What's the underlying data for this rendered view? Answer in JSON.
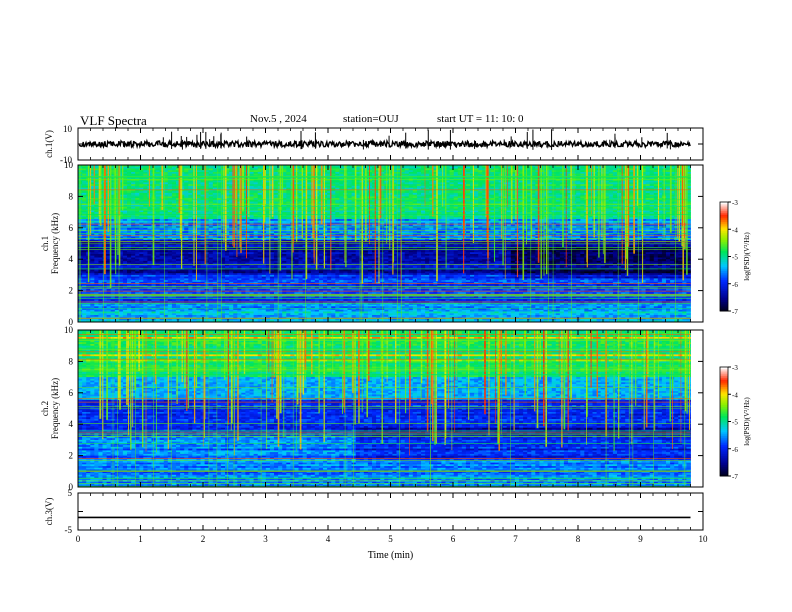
{
  "header": {
    "title": "VLF Spectra",
    "date": "Nov.5 , 2024",
    "station": "station=OUJ",
    "start": "start UT = 11: 10: 0"
  },
  "chart_data": [
    {
      "type": "line",
      "name": "ch1-waveform",
      "ylabel": "ch.1(V)",
      "ylim": [
        -10,
        10
      ],
      "yticks": [
        "10",
        "-10"
      ],
      "x": [
        0,
        10
      ],
      "baseline_y": 0,
      "xlim": [
        0,
        10
      ]
    },
    {
      "type": "heatmap",
      "name": "ch1-spectrogram",
      "ylabel": "ch.1\nFrequency (kHz)",
      "ylim": [
        0,
        10
      ],
      "yticks": [
        "0",
        "2",
        "4",
        "6",
        "8",
        "10"
      ],
      "xlim": [
        0,
        10
      ],
      "data_end_min": 9.8,
      "colorbar": {
        "label": "log(PSD)(V²/Hz)",
        "min": -7,
        "max": -3,
        "ticks": [
          "-3",
          "-4",
          "-5",
          "-6",
          "-7"
        ]
      }
    },
    {
      "type": "heatmap",
      "name": "ch2-spectrogram",
      "ylabel": "ch.2\nFrequency (kHz)",
      "ylim": [
        0,
        10
      ],
      "yticks": [
        "0",
        "2",
        "4",
        "6",
        "8",
        "10"
      ],
      "xlim": [
        0,
        10
      ],
      "data_end_min": 9.8,
      "colorbar": {
        "label": "log(PSD)(V²/Hz)",
        "min": -7,
        "max": -3,
        "ticks": [
          "-3",
          "-4",
          "-5",
          "-6",
          "-7"
        ]
      }
    },
    {
      "type": "line",
      "name": "ch3-waveform",
      "ylabel": "ch.3(V)",
      "ylim": [
        -5,
        5
      ],
      "yticks": [
        "5",
        "-5"
      ],
      "x": [
        0,
        9.8
      ],
      "y": [
        -1.6,
        -1.6
      ],
      "xlabel": "Time (min)",
      "xlim": [
        0,
        10
      ],
      "xticks": [
        "0",
        "1",
        "2",
        "3",
        "4",
        "5",
        "6",
        "7",
        "8",
        "9",
        "10"
      ]
    }
  ],
  "colors": {
    "axis": "#000000",
    "colormap": [
      "#000000",
      "#0000ff",
      "#00ffff",
      "#00ff00",
      "#ffff00",
      "#ff0000",
      "#ffffff"
    ]
  }
}
